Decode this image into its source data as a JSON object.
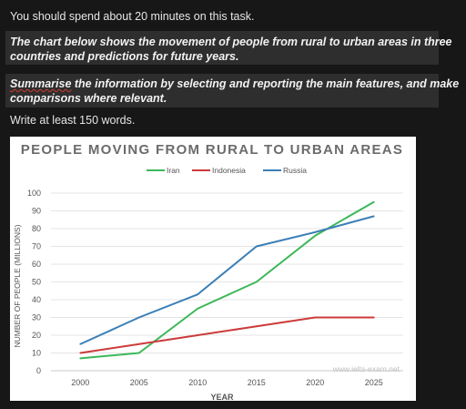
{
  "intro": "You should spend about 20 minutes on this task.",
  "task": {
    "line1": "The chart below shows the movement of people from rural to urban areas in three",
    "line2": "countries and predictions for future years.",
    "line3_first": "Summarise",
    "line3_rest": " the information by selecting and reporting the main features, and make",
    "line4": "comparisons where relevant."
  },
  "word_count": "Write at least 150 words.",
  "watermark": "www.ielts-exam.net",
  "colors": {
    "iran": "#3cb85a",
    "indonesia": "#cc3b3b",
    "russia": "#3b7fb6"
  },
  "chart_data": {
    "type": "line",
    "title": "PEOPLE MOVING FROM RURAL TO URBAN AREAS",
    "xlabel": "YEAR",
    "ylabel": "NUMBER OF PEOPLE (MILLIONS)",
    "x": [
      "2000",
      "2005",
      "2010",
      "2015",
      "2020",
      "2025"
    ],
    "ylim": [
      0,
      100
    ],
    "yticks": [
      "0",
      "10",
      "20",
      "30",
      "40",
      "50",
      "60",
      "70",
      "80",
      "90",
      "100"
    ],
    "grid": true,
    "legend_position": "top",
    "series": [
      {
        "name": "Iran",
        "values": [
          7,
          10,
          35,
          50,
          76,
          95
        ]
      },
      {
        "name": "Indonesia",
        "values": [
          10,
          15,
          20,
          25,
          30,
          30
        ]
      },
      {
        "name": "Russia",
        "values": [
          15,
          30,
          43,
          70,
          78,
          87
        ]
      }
    ]
  }
}
